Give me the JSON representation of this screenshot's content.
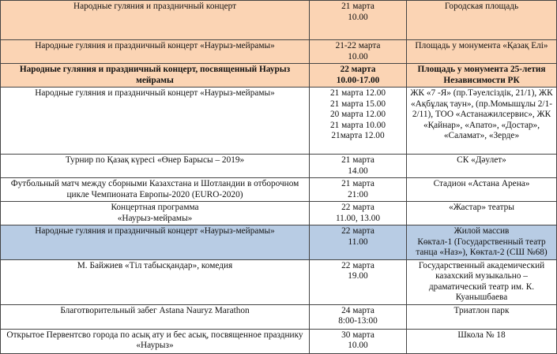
{
  "colors": {
    "peach": "#fbd4b4",
    "blue": "#b8cce4"
  },
  "rows": [
    {
      "event": "Народные гуляния и праздничный концерт",
      "date": "21 марта\n10.00",
      "place": "Городская площадь",
      "style": "peach"
    },
    {
      "event": "Народные гуляния и праздничный концерт «Наурыз-мейрамы»",
      "date": "21-22 марта\n10.00",
      "place": "Площадь у монумента «Қазақ Елі»",
      "style": "peach"
    },
    {
      "event": "Народные гуляния и праздничный концерт, посвященный Наурыз мейрамы",
      "date": "22 марта\n10.00-17.00",
      "place": "Площадь у монумента 25-летия Независимости РК",
      "style": "peach bold"
    },
    {
      "event": "Народные гуляния и праздничный концерт «Наурыз-мейрамы»",
      "date": "21 марта  12.00\n21 марта  15.00\n20 марта  12.00\n21 марта  10.00\n21марта  12.00",
      "place": "ЖК «7 -Я» (пр.Тәуелсіздік, 21/1), ЖК «Ақбұлақ таун», (пр.Момышұлы 2/1-2/11), ТОО «Астанажилсервис», ЖК «Қайнар», «Апато», «Достар», «Саламат», «Зерде»",
      "style": ""
    },
    {
      "event": "Турнир по Қазақ күресі «Өнер Барысы – 2019»",
      "date": "21 марта\n14.00",
      "place": "СК «Дәулет»",
      "style": ""
    },
    {
      "event": "Футбольный матч между сборными Казахстана и Шотландии в отборочном цикле Чемпионата Европы-2020 (EURO-2020)",
      "date": "21  марта\n21:00",
      "place": "Стадион «Астана Арена»",
      "style": ""
    },
    {
      "event": "Концертная программа\n«Наурыз-мейрамы»",
      "date": "22 марта\n11.00, 13.00",
      "place": "«Жастар» театры",
      "style": ""
    },
    {
      "event": "Народные гуляния и праздничный концерт «Наурыз-мейрамы»",
      "date": "22 марта\n11.00",
      "place": "Жилой массив\nКөктал-1 (Государственный театр танца «Наз»), Көктал-2 (СШ №68)",
      "style": "blue"
    },
    {
      "event": "М. Байжиев «Тіл табысқандар», комедия",
      "date": "22 марта\n19.00",
      "place": "Государственный академический казахский музыкально – драматический театр им. К. Куанышбаева",
      "style": ""
    },
    {
      "event": "Благотворительный забег Astana Nauryz Marathon",
      "date": "24 марта\n8:00-13:00",
      "place": "Триатлон парк",
      "style": ""
    },
    {
      "event": "Открытое Первентсво города по асық ату и бес асық, посвященное празднику «Наурыз»",
      "date": "30 марта\n10.00",
      "place": "Школа № 18",
      "style": ""
    }
  ]
}
